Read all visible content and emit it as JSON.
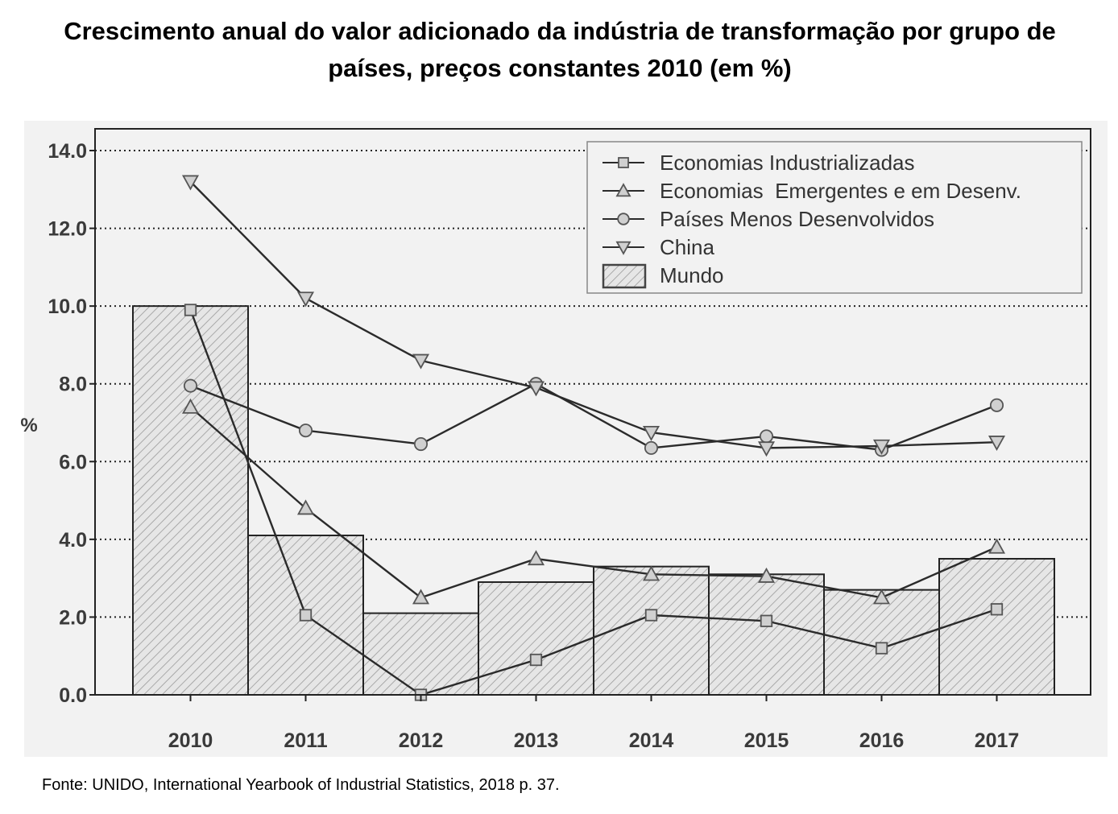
{
  "title_lines": [
    "Crescimento anual do valor adicionado da indústria de transformação por grupo de",
    "países, preços constantes 2010 (em %)"
  ],
  "source": "Fonte: UNIDO, International Yearbook of Industrial Statistics, 2018  p. 37.",
  "colors": {
    "plot_background": "#f2f2f2",
    "bar_fill": "#e6e6e6",
    "bar_hatch": "#9a9a9a",
    "line": "#2b2b2b",
    "marker_fill": "#d0d0d0",
    "marker_stroke": "#555555",
    "axis_text": "#3a3a3a"
  },
  "chart_data": {
    "type": "bar",
    "title": "Crescimento anual do valor adicionado da indústria de transformação por grupo de países, preços constantes 2010 (em %)",
    "xlabel": "",
    "ylabel": "%",
    "ylim": [
      0,
      14
    ],
    "y_ticks": [
      "0.0",
      "2.0",
      "4.0",
      "6.0",
      "8.0",
      "10.0",
      "12.0",
      "14.0"
    ],
    "y_tick_values": [
      0,
      2,
      4,
      6,
      8,
      10,
      12,
      14
    ],
    "categories": [
      "2010",
      "2011",
      "2012",
      "2013",
      "2014",
      "2015",
      "2016",
      "2017"
    ],
    "grid": "horizontal dotted",
    "legend_position": "top-right",
    "bars": {
      "name": "Mundo",
      "values": [
        10.0,
        4.1,
        2.1,
        2.9,
        3.3,
        3.1,
        2.7,
        3.5
      ]
    },
    "series": [
      {
        "name": "Economias Industrializadas",
        "marker": "square",
        "values": [
          9.9,
          2.05,
          0.0,
          0.9,
          2.05,
          1.9,
          1.2,
          2.2
        ]
      },
      {
        "name": "Economias  Emergentes e em Desenv.",
        "marker": "triangle-up",
        "values": [
          7.4,
          4.8,
          2.5,
          3.5,
          3.1,
          3.05,
          2.5,
          3.8
        ]
      },
      {
        "name": "Países Menos Desenvolvidos",
        "marker": "circle",
        "values": [
          7.95,
          6.8,
          6.45,
          8.0,
          6.35,
          6.65,
          6.3,
          7.45
        ]
      },
      {
        "name": "China",
        "marker": "triangle-down",
        "values": [
          13.2,
          10.2,
          8.6,
          7.9,
          6.75,
          6.35,
          6.4,
          6.5
        ]
      }
    ],
    "legend_order": [
      "Economias Industrializadas",
      "Economias  Emergentes e em Desenv.",
      "Países Menos Desenvolvidos",
      "China",
      "Mundo"
    ]
  }
}
